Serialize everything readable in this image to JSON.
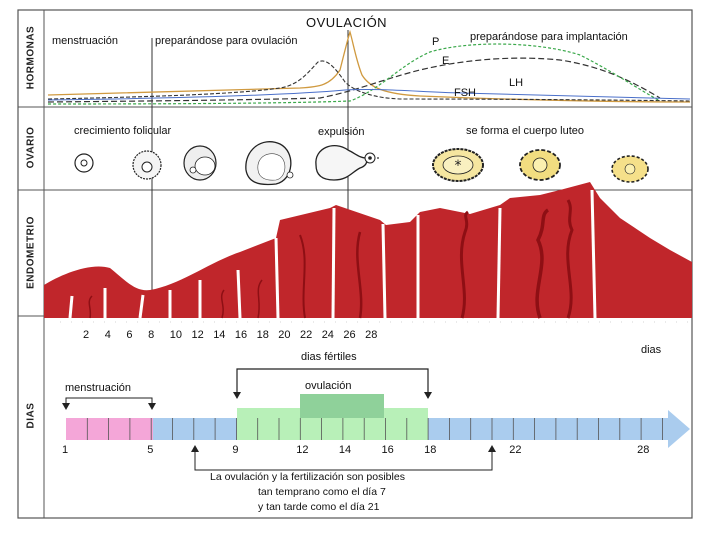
{
  "sections": {
    "hormonas": "HORMONAS",
    "ovario": "OVARIO",
    "endometrio": "ENDOMETRIO",
    "dias": "DIAS"
  },
  "hormones": {
    "ovulacion_title": "OVULACIÓN",
    "menstruacion": "menstruación",
    "preparando_ovulacion": "preparándose para ovulación",
    "preparando_implantacion": "preparándose para implantación",
    "p": "P",
    "e": "E",
    "lh": "LH",
    "fsh": "FSH"
  },
  "ovario": {
    "crecimiento": "crecimiento folicular",
    "expulsion": "expulsión",
    "cuerpo_luteo": "se forma el cuerpo luteo"
  },
  "endometrio": {
    "day_ticks": [
      "2",
      "4",
      "6",
      "8",
      "10",
      "12",
      "14",
      "16",
      "18",
      "20",
      "22",
      "24",
      "26",
      "28"
    ],
    "dias_label": "dias"
  },
  "dias": {
    "fertiles": "dias fértiles",
    "ovulacion": "ovulación",
    "menstruacion": "menstruación",
    "timeline_labels": [
      "1",
      "5",
      "9",
      "12",
      "14",
      "16",
      "18",
      "22",
      "28"
    ],
    "note_line1": "La ovulación y la fertilización son posibles",
    "note_line2": "tan temprano como el día 7",
    "note_line3": "y tan tarde como el día 21"
  },
  "colors": {
    "endometrium": "#c0262b",
    "endometrium_dark": "#8e0f14",
    "menstruation_pink": "#f4a6d8",
    "fertile_green": "#b8f0b8",
    "ovulation_green": "#8fd19a",
    "timeline_blue": "#aaccee"
  }
}
